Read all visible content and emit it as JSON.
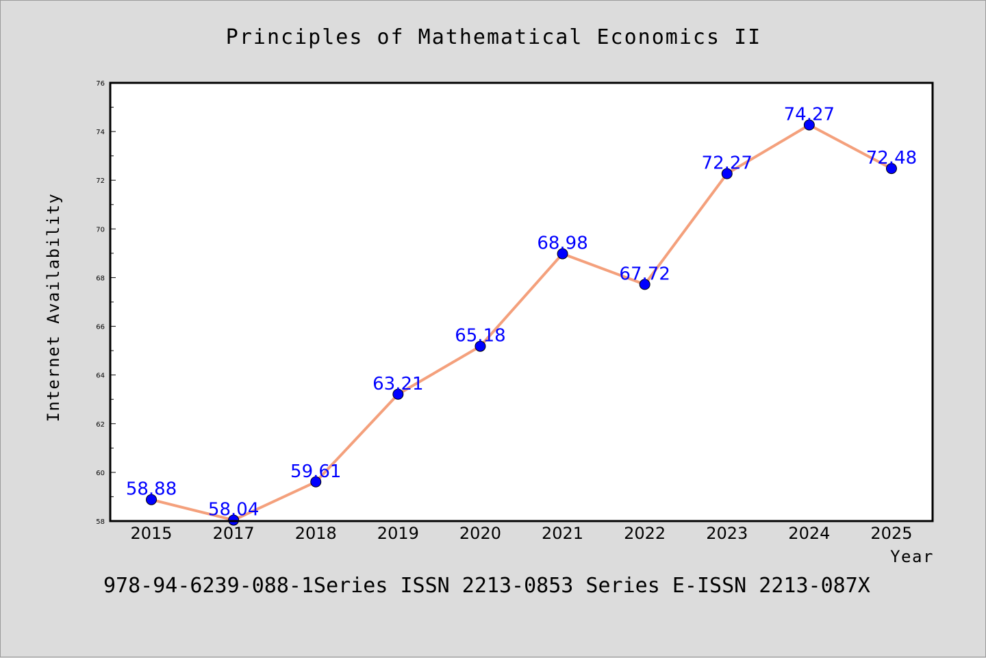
{
  "chart_data": {
    "type": "line",
    "title": "Principles of Mathematical Economics II",
    "xlabel": "Year",
    "ylabel": "Internet Availability",
    "categories": [
      "2015",
      "2017",
      "2018",
      "2019",
      "2020",
      "2021",
      "2022",
      "2023",
      "2024",
      "2025"
    ],
    "values": [
      58.88,
      58.04,
      59.61,
      63.21,
      65.18,
      68.98,
      67.72,
      72.27,
      74.27,
      72.48
    ],
    "value_labels": [
      "58.88",
      "58.04",
      "59.61",
      "63.21",
      "65.18",
      "68.98",
      "67.72",
      "72.27",
      "74.27",
      "72.48"
    ],
    "ylim": [
      58,
      76
    ],
    "yticks": [
      "58",
      "60",
      "62",
      "64",
      "66",
      "68",
      "70",
      "72",
      "74",
      "76"
    ],
    "yminor_step": 1,
    "grid": false,
    "line_color": "#f4a07c",
    "marker_color": "#0000ff",
    "label_color": "#0000ff",
    "footer": "978-94-6239-088-1Series ISSN 2213-0853 Series E-ISSN 2213-087X"
  }
}
